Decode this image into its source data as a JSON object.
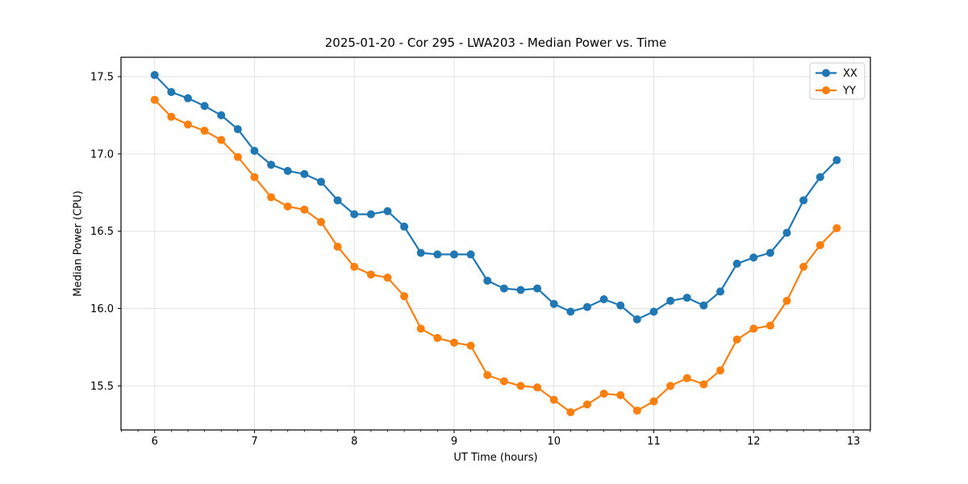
{
  "chart_data": {
    "type": "line",
    "title": "2025-01-20 - Cor 295 - LWA203 - Median Power vs. Time",
    "xlabel": "UT Time (hours)",
    "ylabel": "Median Power (CPU)",
    "xlim": [
      5.663,
      13.17
    ],
    "ylim": [
      15.215,
      17.625
    ],
    "xticks": [
      6,
      7,
      8,
      9,
      10,
      11,
      12,
      13
    ],
    "yticks": [
      15.5,
      16.0,
      16.5,
      17.0,
      17.5
    ],
    "minor_xtick_step": 0.166667,
    "grid": true,
    "grid_color": "#e2e2e2",
    "background_color": "#ffffff",
    "spine_color": "#000000",
    "legend_position": "upper right",
    "marker": "circle",
    "marker_radius": 5,
    "line_width": 2.2,
    "x": [
      6.0,
      6.1667,
      6.3333,
      6.5,
      6.6667,
      6.8333,
      7.0,
      7.1667,
      7.3333,
      7.5,
      7.6667,
      7.8333,
      8.0,
      8.1667,
      8.3333,
      8.5,
      8.6667,
      8.8333,
      9.0,
      9.1667,
      9.3333,
      9.5,
      9.6667,
      9.8333,
      10.0,
      10.1667,
      10.3333,
      10.5,
      10.6667,
      10.8333,
      11.0,
      11.1667,
      11.3333,
      11.5,
      11.6667,
      11.8333,
      12.0,
      12.1667,
      12.3333,
      12.5,
      12.6667,
      12.8333
    ],
    "series": [
      {
        "name": "XX",
        "color": "#1f77b4",
        "values": [
          17.51,
          17.4,
          17.36,
          17.31,
          17.25,
          17.16,
          17.02,
          16.93,
          16.89,
          16.87,
          16.82,
          16.7,
          16.61,
          16.61,
          16.63,
          16.53,
          16.36,
          16.35,
          16.35,
          16.35,
          16.18,
          16.13,
          16.12,
          16.13,
          16.03,
          15.98,
          16.01,
          16.06,
          16.02,
          15.93,
          15.98,
          16.05,
          16.07,
          16.02,
          16.11,
          16.29,
          16.33,
          16.36,
          16.49,
          16.7,
          16.85,
          16.96
        ]
      },
      {
        "name": "YY",
        "color": "#ff7f0e",
        "values": [
          17.35,
          17.24,
          17.19,
          17.15,
          17.09,
          16.98,
          16.85,
          16.72,
          16.66,
          16.64,
          16.56,
          16.4,
          16.27,
          16.22,
          16.2,
          16.08,
          15.87,
          15.81,
          15.78,
          15.76,
          15.57,
          15.53,
          15.5,
          15.49,
          15.41,
          15.33,
          15.38,
          15.45,
          15.44,
          15.34,
          15.4,
          15.5,
          15.55,
          15.51,
          15.6,
          15.8,
          15.87,
          15.89,
          16.05,
          16.27,
          16.41,
          16.52
        ]
      }
    ]
  }
}
